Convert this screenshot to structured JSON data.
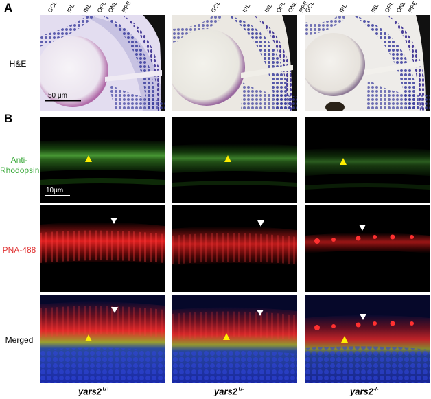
{
  "panels": {
    "A": {
      "letter": "A",
      "row_label": "H&E",
      "scale_bar": "50 μm",
      "layers": [
        "GCL",
        "IPL",
        "INL",
        "OPL",
        "ONL",
        "RPE"
      ]
    },
    "B": {
      "letter": "B",
      "scale_bar": "10μm",
      "rows": [
        {
          "label_line1": "Anti-",
          "label_line2": "Rhodopsin",
          "color": "#3daa3d"
        },
        {
          "label_line1": "PNA-488",
          "label_line2": "",
          "color": "#e03030"
        },
        {
          "label_line1": "Merged",
          "label_line2": "",
          "color": "#000000"
        }
      ]
    }
  },
  "genotypes": [
    {
      "base": "yars2",
      "sup": "+/+"
    },
    {
      "base": "yars2",
      "sup": "+/-"
    },
    {
      "base": "yars2",
      "sup": "-/-"
    }
  ],
  "colors": {
    "he_bg": "#d9d4ea",
    "he_cells": "#3a3c9c",
    "rpe": "#111111",
    "green": "#4fb84f",
    "red": "#ff3a3a",
    "blue": "#2a3cc8",
    "arrow_yellow": "#ffee00",
    "arrow_white": "#ffffff"
  }
}
